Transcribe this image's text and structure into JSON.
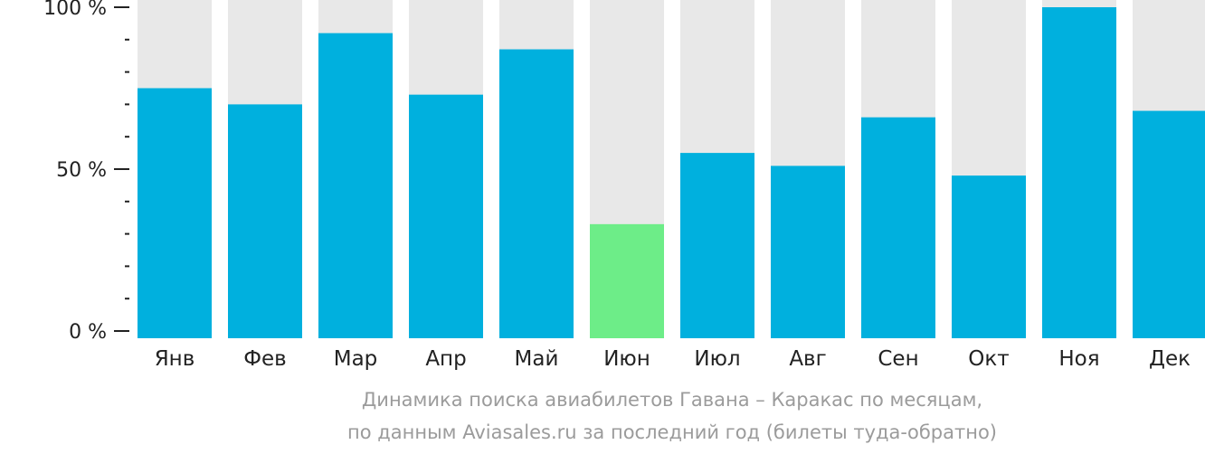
{
  "chart_data": {
    "type": "bar",
    "categories": [
      "Янв",
      "Фев",
      "Мар",
      "Апр",
      "Май",
      "Июн",
      "Июл",
      "Авг",
      "Сен",
      "Окт",
      "Ноя",
      "Дек"
    ],
    "values": [
      75,
      70,
      92,
      73,
      87,
      33,
      55,
      51,
      66,
      48,
      100,
      68
    ],
    "highlight_index": 5,
    "y_ticks": [
      "0 %",
      "50 %",
      "100 %"
    ],
    "ylim": [
      0,
      100
    ],
    "colors": {
      "bar": "#00b0de",
      "highlight": "#6ded88",
      "track": "#e8e8e8",
      "axis": "#222222",
      "caption": "#9b9b9b"
    }
  },
  "caption": {
    "line1": "Динамика поиска авиабилетов Гавана – Каракас по месяцам,",
    "line2": "по данным Aviasales.ru за последний год (билеты туда-обратно)"
  }
}
